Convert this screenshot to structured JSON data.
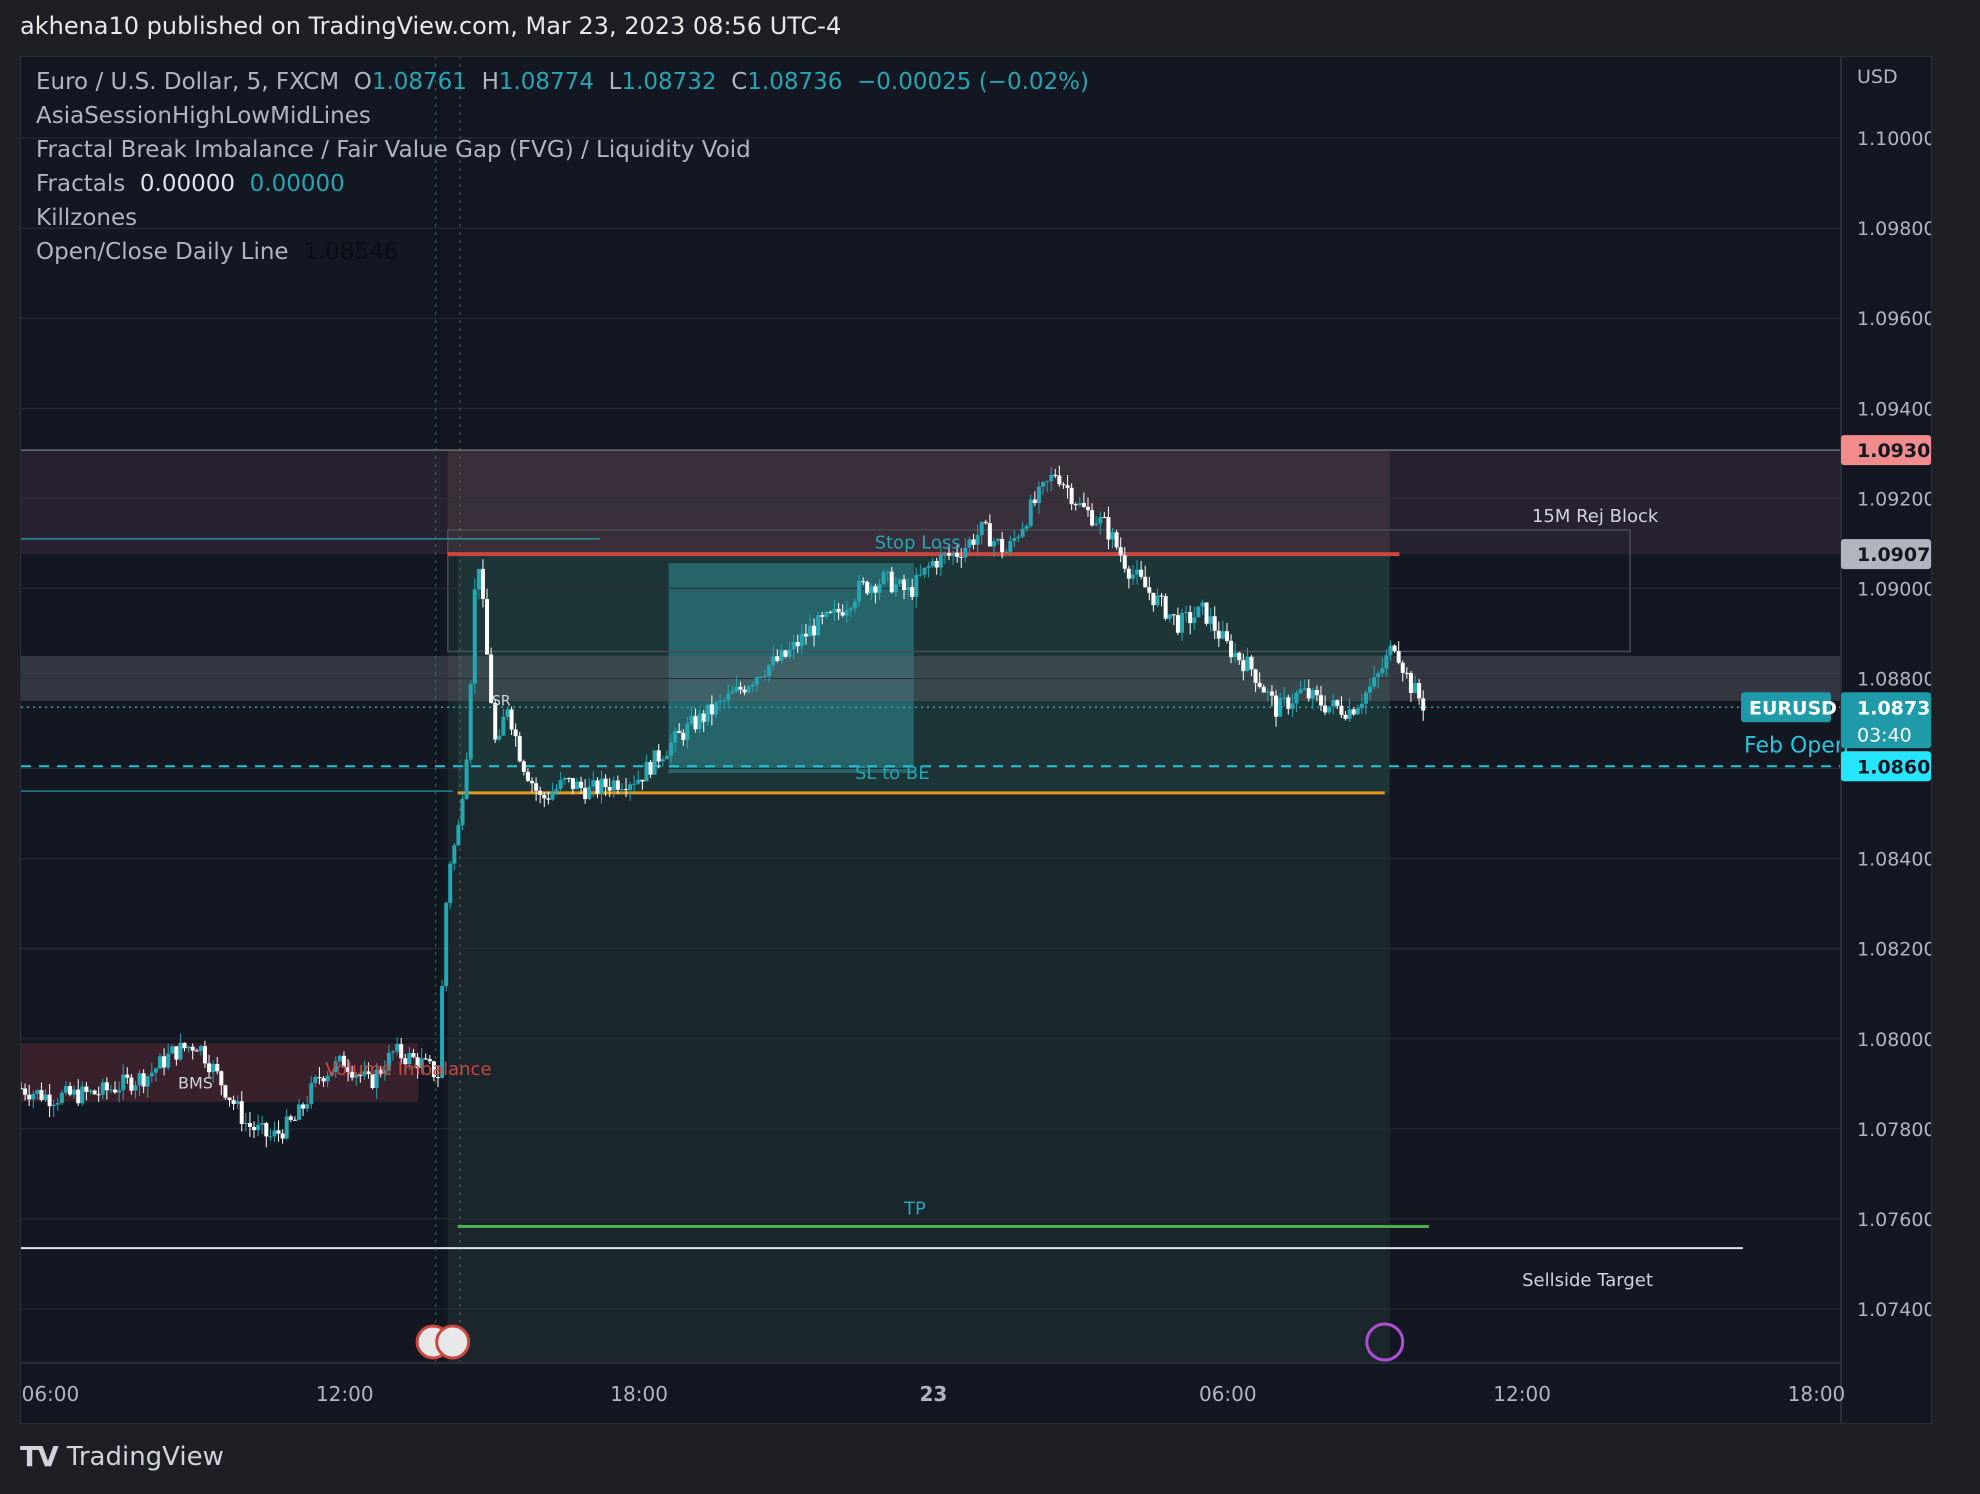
{
  "header": {
    "text": "akhena10 published on TradingView.com, Mar 23, 2023 08:56 UTC-4"
  },
  "legend": {
    "symbol": "Euro / U.S. Dollar, 5, FXCM",
    "o_label": "O",
    "o": "1.08761",
    "h_label": "H",
    "h": "1.08774",
    "l_label": "L",
    "l": "1.08732",
    "c_label": "C",
    "c": "1.08736",
    "change": "−0.00025 (−0.02%)",
    "ind1": "AsiaSessionHighLowMidLines",
    "ind2": "Fractal Break Imbalance / Fair Value Gap (FVG) / Liquidity Void",
    "ind3": "Fractals",
    "ind3_v1": "0.00000",
    "ind3_v2": "0.00000",
    "ind4": "Killzones",
    "ind5": "Open/Close Daily Line",
    "ind5_v": "1.08546"
  },
  "footer": {
    "logo": "TV",
    "brand": "TradingView"
  },
  "chart_data": {
    "type": "candlestick",
    "symbol": "EURUSD",
    "currency": "USD",
    "y_ticks": [
      1.1,
      1.098,
      1.096,
      1.094,
      1.092,
      1.09,
      1.088,
      1.086,
      1.084,
      1.082,
      1.08,
      1.078,
      1.076,
      1.074
    ],
    "y_tick_labels": [
      "1.10000",
      "1.09800",
      "1.09600",
      "1.09400",
      "1.09200",
      "1.09000",
      "1.08800",
      "",
      "1.08400",
      "1.08200",
      "1.08000",
      "1.07800",
      "1.07600",
      "1.07400"
    ],
    "ylim": [
      1.0728,
      1.1018
    ],
    "x_tick_labels": [
      "06:00",
      "12:00",
      "18:00",
      "23",
      "06:00",
      "12:00",
      "18:00"
    ],
    "x_tick_hours": [
      6,
      12,
      18,
      24,
      30,
      36,
      42
    ],
    "xlim_hours": [
      5.4,
      42.5
    ],
    "series": [
      {
        "name": "EURUSD",
        "price_hours": [
          5.4,
          6,
          7,
          8,
          8.5,
          9,
          9.5,
          10,
          10.5,
          11,
          11.5,
          12,
          12.5,
          13,
          13.5,
          13.9,
          14.1,
          14.3,
          14.5,
          14.7,
          14.9,
          15.1,
          15.3,
          15.6,
          16,
          16.5,
          17,
          17.5,
          18,
          18.5,
          19,
          19.5,
          20,
          20.5,
          21,
          21.5,
          22,
          22.5,
          23,
          23.5,
          24,
          24.5,
          25,
          25.5,
          26,
          26.5,
          27,
          27.5,
          28,
          28.5,
          29,
          29.5,
          30,
          30.5,
          31,
          31.5,
          32,
          32.5,
          33,
          33.4,
          33.7,
          34
        ],
        "price_values": [
          1.0789,
          1.0787,
          1.0788,
          1.0792,
          1.0797,
          1.0799,
          1.079,
          1.0781,
          1.0778,
          1.0782,
          1.0792,
          1.0795,
          1.079,
          1.0797,
          1.0795,
          1.0792,
          1.0838,
          1.0845,
          1.0866,
          1.091,
          1.0885,
          1.0862,
          1.0875,
          1.0862,
          1.0853,
          1.0857,
          1.0855,
          1.0857,
          1.0858,
          1.0864,
          1.0869,
          1.0873,
          1.0877,
          1.0882,
          1.0885,
          1.0891,
          1.0894,
          1.09,
          1.0902,
          1.0899,
          1.0906,
          1.0908,
          1.0913,
          1.0908,
          1.0918,
          1.0926,
          1.0918,
          1.0914,
          1.0904,
          1.0898,
          1.0892,
          1.0895,
          1.0887,
          1.0882,
          1.0873,
          1.0877,
          1.0874,
          1.0873,
          1.0879,
          1.0888,
          1.0879,
          1.0874
        ]
      }
    ],
    "levels": [
      {
        "name": "upper-zone-top",
        "value": 1.09307
      },
      {
        "name": "stop-loss",
        "value": 1.09076
      },
      {
        "name": "current",
        "value": 1.08736
      },
      {
        "name": "feb-open",
        "value": 1.08605
      },
      {
        "name": "sl-to-be",
        "value": 1.08546
      },
      {
        "name": "tp",
        "value": 1.07583
      },
      {
        "name": "sellside-target",
        "value": 1.07535
      }
    ],
    "price_labels": [
      {
        "text": "1.09307",
        "value": 1.09307,
        "bg": "#f28b8b",
        "fg": "#131722"
      },
      {
        "text": "1.09076",
        "value": 1.09076,
        "bg": "#b2b5be",
        "fg": "#131722"
      },
      {
        "text": "1.08605",
        "value": 1.08605,
        "bg": "#26e6ff",
        "fg": "#131722"
      }
    ],
    "current_label": {
      "symbol": "EURUSD",
      "price": "1.08736",
      "countdown": "03:40",
      "bg": "#1e9aa8"
    },
    "annotations": [
      "Stop Loss",
      "SL to BE",
      "TP",
      "15M Rej Block",
      "Sellside Target",
      "Feb Open",
      "Volume Imbalance",
      "BMS",
      "SR"
    ],
    "colors": {
      "up": "#26a5b3",
      "down": "#ffffff",
      "bg": "#131722",
      "grid": "#2a2e39",
      "accent": "#26a5b3",
      "sl_line": "#c9473f",
      "be_line": "#e59a1e",
      "tp_line": "#4caf50"
    }
  }
}
